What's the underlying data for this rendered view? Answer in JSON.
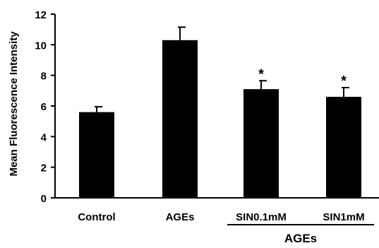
{
  "chart_data": {
    "type": "bar",
    "title": "",
    "xlabel": "",
    "ylabel": "Mean Fluorescence Intensity",
    "categories": [
      "Control",
      "AGEs",
      "SIN0.1mM",
      "SIN1mM"
    ],
    "values": [
      5.6,
      10.3,
      7.1,
      6.6
    ],
    "error": [
      0.35,
      0.85,
      0.55,
      0.6
    ],
    "annotations": [
      "",
      "",
      "*",
      "*"
    ],
    "group_label": {
      "text": "AGEs",
      "covers": [
        "SIN0.1mM",
        "SIN1mM"
      ]
    },
    "ylim": [
      0,
      12
    ],
    "yticks": [
      0,
      2,
      4,
      6,
      8,
      10,
      12
    ],
    "grid": false,
    "legend": "none",
    "colors": {
      "bar": "#000000",
      "axis": "#000000"
    }
  }
}
